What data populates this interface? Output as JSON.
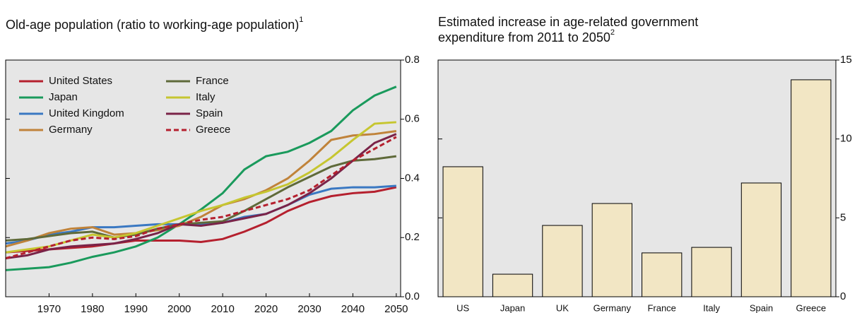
{
  "chart_data": [
    {
      "type": "line",
      "title": "Old-age population (ratio to working-age population)",
      "title_note": "1",
      "x": [
        1960,
        1965,
        1970,
        1975,
        1980,
        1985,
        1990,
        1995,
        2000,
        2005,
        2010,
        2015,
        2020,
        2025,
        2030,
        2035,
        2040,
        2045,
        2050
      ],
      "xlim": [
        1960,
        2051
      ],
      "xticks": [
        1970,
        1980,
        1990,
        2000,
        2010,
        2020,
        2030,
        2040,
        2050
      ],
      "ylim": [
        0,
        0.8
      ],
      "yticks": [
        {
          "value": 0,
          "label": "0.0"
        },
        0.2,
        0.4,
        0.6,
        0.8
      ],
      "series": [
        {
          "name": "United States",
          "color": "#b5202e",
          "values": [
            0.15,
            0.155,
            0.16,
            0.165,
            0.17,
            0.18,
            0.19,
            0.19,
            0.19,
            0.185,
            0.195,
            0.22,
            0.25,
            0.29,
            0.32,
            0.34,
            0.35,
            0.355,
            0.37
          ]
        },
        {
          "name": "Japan",
          "color": "#1a9a5c",
          "values": [
            0.09,
            0.095,
            0.1,
            0.115,
            0.135,
            0.15,
            0.17,
            0.2,
            0.245,
            0.295,
            0.35,
            0.43,
            0.475,
            0.49,
            0.52,
            0.56,
            0.63,
            0.68,
            0.71
          ]
        },
        {
          "name": "United Kingdom",
          "color": "#3a78c2",
          "values": [
            0.18,
            0.19,
            0.21,
            0.22,
            0.235,
            0.235,
            0.24,
            0.245,
            0.245,
            0.245,
            0.25,
            0.27,
            0.28,
            0.31,
            0.345,
            0.365,
            0.37,
            0.37,
            0.375
          ]
        },
        {
          "name": "Germany",
          "color": "#c0833a",
          "values": [
            0.17,
            0.19,
            0.215,
            0.23,
            0.235,
            0.21,
            0.215,
            0.225,
            0.24,
            0.27,
            0.31,
            0.33,
            0.36,
            0.4,
            0.46,
            0.53,
            0.545,
            0.55,
            0.56
          ]
        },
        {
          "name": "France",
          "color": "#5f6a3a",
          "values": [
            0.19,
            0.195,
            0.205,
            0.215,
            0.22,
            0.2,
            0.21,
            0.23,
            0.245,
            0.25,
            0.255,
            0.29,
            0.33,
            0.37,
            0.405,
            0.44,
            0.46,
            0.465,
            0.475
          ]
        },
        {
          "name": "Italy",
          "color": "#c6c630",
          "values": [
            0.15,
            0.16,
            0.17,
            0.19,
            0.21,
            0.2,
            0.215,
            0.24,
            0.265,
            0.29,
            0.31,
            0.335,
            0.355,
            0.38,
            0.42,
            0.47,
            0.53,
            0.585,
            0.59
          ]
        },
        {
          "name": "Spain",
          "color": "#7a2348",
          "values": [
            0.13,
            0.14,
            0.16,
            0.17,
            0.175,
            0.18,
            0.195,
            0.215,
            0.245,
            0.24,
            0.25,
            0.265,
            0.28,
            0.31,
            0.35,
            0.4,
            0.46,
            0.52,
            0.55
          ]
        },
        {
          "name": "Greece",
          "color": "#b5202e",
          "dash": true,
          "values": [
            0.13,
            0.15,
            0.17,
            0.19,
            0.2,
            0.195,
            0.205,
            0.23,
            0.245,
            0.26,
            0.27,
            0.29,
            0.31,
            0.33,
            0.36,
            0.41,
            0.46,
            0.5,
            0.54
          ]
        }
      ]
    },
    {
      "type": "bar",
      "title_lines": [
        "Estimated increase in age-related government",
        "expenditure from 2011 to 2050"
      ],
      "title_note": "2",
      "categories": [
        "US",
        "Japan",
        "UK",
        "Germany",
        "France",
        "Italy",
        "Spain",
        "Greece"
      ],
      "values": [
        8.24,
        1.43,
        4.52,
        5.91,
        2.78,
        3.13,
        7.21,
        13.75
      ],
      "color": "#f2e6c4",
      "ylim": [
        0,
        15
      ],
      "yticks": [
        0,
        5,
        10,
        15
      ]
    }
  ]
}
